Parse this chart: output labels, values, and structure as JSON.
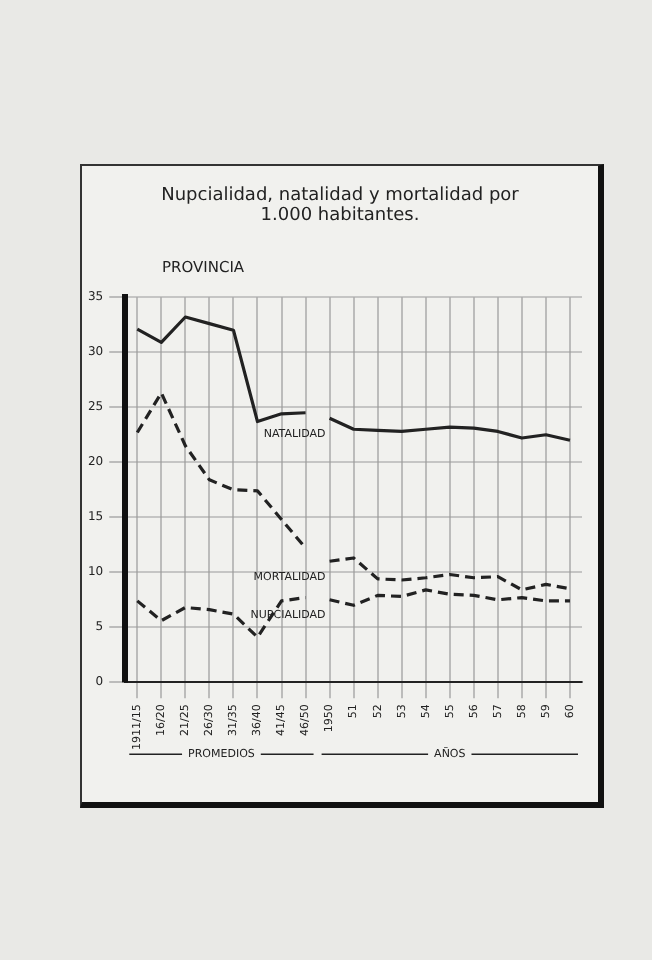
{
  "chart_data": {
    "type": "line",
    "title": "Nupcialidad, natalidad y mortalidad por 1.000 habitantes.",
    "subtitle": "PROVINCIA",
    "categories": [
      "1911/15",
      "16/20",
      "21/25",
      "26/30",
      "31/35",
      "36/40",
      "41/45",
      "46/50",
      "1950",
      "51",
      "52",
      "53",
      "54",
      "55",
      "56",
      "57",
      "58",
      "59",
      "60"
    ],
    "series": [
      {
        "color": "#222222",
        "line_style": "solid",
        "values": [
          32.1,
          30.9,
          33.2,
          32.6,
          32.0,
          23.7,
          24.4,
          24.5,
          null,
          null,
          null,
          null,
          null,
          null,
          null,
          null,
          null,
          null,
          null
        ]
      },
      {
        "name": "NATALIDAD",
        "color": "#222222",
        "line_style": "solid",
        "values": [
          null,
          null,
          null,
          null,
          null,
          null,
          null,
          null,
          24.0,
          23.0,
          22.9,
          22.8,
          23.0,
          23.2,
          23.1,
          22.8,
          22.2,
          22.5,
          22.0
        ]
      },
      {
        "color": "#222222",
        "line_style": "dashed",
        "values": [
          22.7,
          26.3,
          21.5,
          18.4,
          17.5,
          17.4,
          14.8,
          12.2,
          null,
          null,
          null,
          null,
          null,
          null,
          null,
          null,
          null,
          null,
          null
        ]
      },
      {
        "name": "MORTALIDAD",
        "color": "#222222",
        "line_style": "dashed",
        "values": [
          null,
          null,
          null,
          null,
          null,
          null,
          null,
          null,
          11.0,
          11.3,
          9.4,
          9.3,
          9.5,
          9.8,
          9.5,
          9.6,
          8.4,
          8.9,
          8.5
        ]
      },
      {
        "color": "#222222",
        "line_style": "dashed",
        "values": [
          7.4,
          5.6,
          6.8,
          6.6,
          6.2,
          4.1,
          7.4,
          7.7,
          null,
          null,
          null,
          null,
          null,
          null,
          null,
          null,
          null,
          null,
          null
        ]
      },
      {
        "name": "NUPCIALIDAD",
        "color": "#222222",
        "line_style": "dashed",
        "values": [
          null,
          null,
          null,
          null,
          null,
          null,
          null,
          null,
          7.5,
          7.0,
          7.9,
          7.8,
          8.4,
          8.0,
          7.9,
          7.5,
          7.7,
          7.4,
          7.4
        ]
      }
    ],
    "ylim": [
      0,
      35
    ],
    "yticks": [
      0,
      5,
      10,
      15,
      20,
      25,
      30,
      35
    ],
    "grid": true,
    "legend": false,
    "annotations": [
      "PROMEDIOS",
      "AÑOS"
    ]
  }
}
